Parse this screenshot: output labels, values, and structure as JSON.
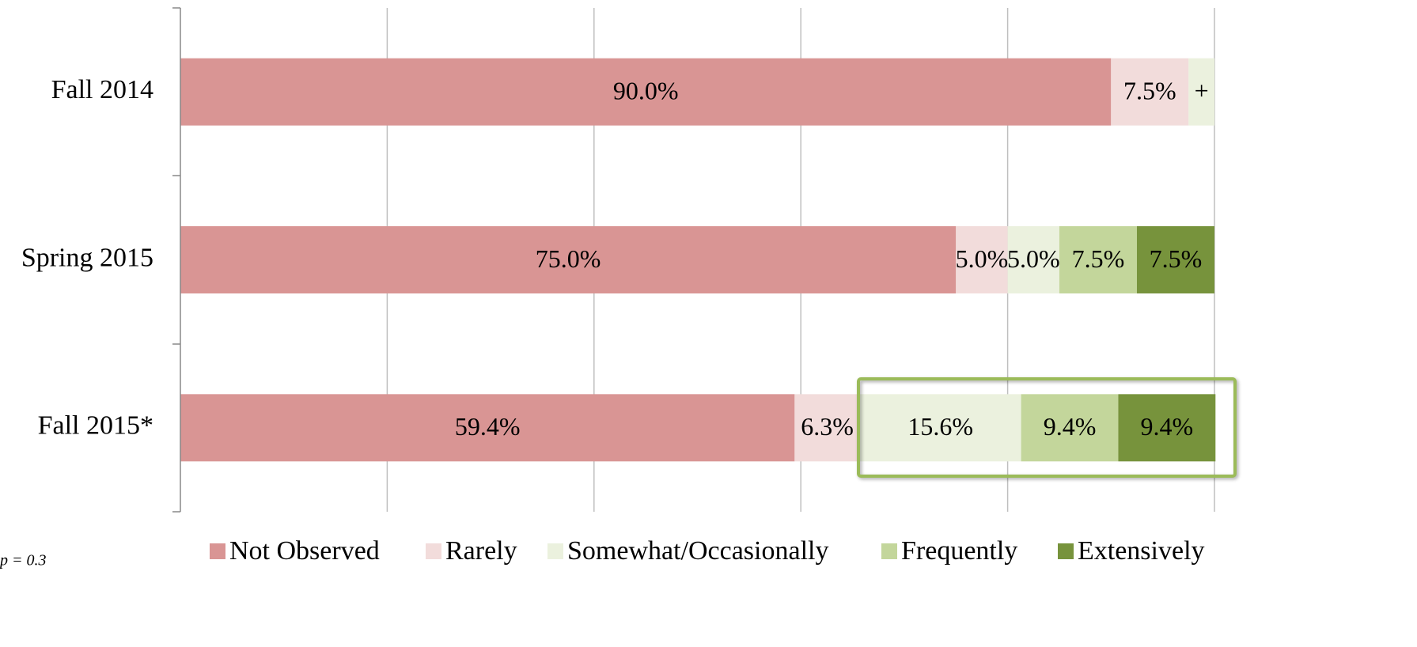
{
  "chart_data": {
    "type": "stacked-bar-horizontal",
    "categories": [
      "Fall 2014",
      "Spring 2015",
      "Fall 2015*"
    ],
    "series": [
      {
        "name": "Not Observed",
        "color": "#d99594",
        "values": [
          90.0,
          75.0,
          59.4
        ],
        "value_labels": [
          "90.0%",
          "75.0%",
          "59.4%"
        ]
      },
      {
        "name": "Rarely",
        "color": "#f2dcdb",
        "values": [
          7.5,
          5.0,
          6.3
        ],
        "value_labels": [
          "7.5%",
          "5.0%",
          "6.3%"
        ]
      },
      {
        "name": "Somewhat/Occasionally",
        "color": "#ebf1de",
        "values": [
          2.5,
          5.0,
          15.6
        ],
        "value_labels": [
          "+",
          "5.0%",
          "15.6%"
        ]
      },
      {
        "name": "Frequently",
        "color": "#c3d69b",
        "values": [
          0,
          7.5,
          9.4
        ],
        "value_labels": [
          null,
          "7.5%",
          "9.4%"
        ]
      },
      {
        "name": "Extensively",
        "color": "#77933c",
        "values": [
          0,
          7.5,
          9.4
        ],
        "value_labels": [
          null,
          "7.5%",
          "9.4%"
        ]
      }
    ],
    "xlim": [
      0,
      100
    ],
    "xticks": [
      0,
      20,
      40,
      60,
      80,
      100
    ],
    "grid": true,
    "legend": "bottom",
    "note": "p = 0.3"
  }
}
